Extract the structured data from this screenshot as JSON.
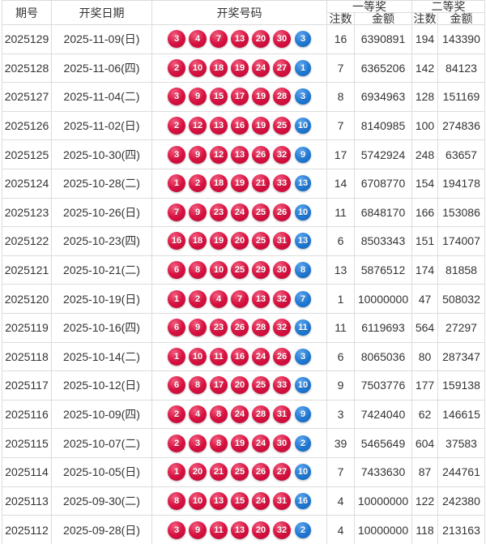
{
  "table": {
    "headers": {
      "period": "期号",
      "date": "开奖日期",
      "numbers": "开奖号码",
      "first_prize": "一等奖",
      "second_prize": "二等奖",
      "count": "注数",
      "amount": "金额"
    },
    "rows": [
      {
        "period": "2025129",
        "date": "2025-11-09(日)",
        "red_balls": [
          "3",
          "4",
          "7",
          "13",
          "20",
          "30"
        ],
        "blue_ball": "3",
        "first_prize_count": "16",
        "first_prize_amount": "6390891",
        "second_prize_count": "194",
        "second_prize_amount": "143390"
      },
      {
        "period": "2025128",
        "date": "2025-11-06(四)",
        "red_balls": [
          "2",
          "10",
          "18",
          "19",
          "24",
          "27"
        ],
        "blue_ball": "1",
        "first_prize_count": "7",
        "first_prize_amount": "6365206",
        "second_prize_count": "142",
        "second_prize_amount": "84123"
      },
      {
        "period": "2025127",
        "date": "2025-11-04(二)",
        "red_balls": [
          "3",
          "9",
          "15",
          "17",
          "19",
          "28"
        ],
        "blue_ball": "3",
        "first_prize_count": "8",
        "first_prize_amount": "6934963",
        "second_prize_count": "128",
        "second_prize_amount": "151169"
      },
      {
        "period": "2025126",
        "date": "2025-11-02(日)",
        "red_balls": [
          "2",
          "12",
          "13",
          "16",
          "19",
          "25"
        ],
        "blue_ball": "10",
        "first_prize_count": "7",
        "first_prize_amount": "8140985",
        "second_prize_count": "100",
        "second_prize_amount": "274836"
      },
      {
        "period": "2025125",
        "date": "2025-10-30(四)",
        "red_balls": [
          "3",
          "9",
          "12",
          "13",
          "26",
          "32"
        ],
        "blue_ball": "9",
        "first_prize_count": "17",
        "first_prize_amount": "5742924",
        "second_prize_count": "248",
        "second_prize_amount": "63657"
      },
      {
        "period": "2025124",
        "date": "2025-10-28(二)",
        "red_balls": [
          "1",
          "2",
          "18",
          "19",
          "21",
          "33"
        ],
        "blue_ball": "13",
        "first_prize_count": "14",
        "first_prize_amount": "6708770",
        "second_prize_count": "154",
        "second_prize_amount": "194178"
      },
      {
        "period": "2025123",
        "date": "2025-10-26(日)",
        "red_balls": [
          "7",
          "9",
          "23",
          "24",
          "25",
          "26"
        ],
        "blue_ball": "10",
        "first_prize_count": "11",
        "first_prize_amount": "6848170",
        "second_prize_count": "166",
        "second_prize_amount": "153086"
      },
      {
        "period": "2025122",
        "date": "2025-10-23(四)",
        "red_balls": [
          "16",
          "18",
          "19",
          "20",
          "25",
          "31"
        ],
        "blue_ball": "13",
        "first_prize_count": "6",
        "first_prize_amount": "8503343",
        "second_prize_count": "151",
        "second_prize_amount": "174007"
      },
      {
        "period": "2025121",
        "date": "2025-10-21(二)",
        "red_balls": [
          "6",
          "8",
          "10",
          "25",
          "29",
          "30"
        ],
        "blue_ball": "8",
        "first_prize_count": "13",
        "first_prize_amount": "5876512",
        "second_prize_count": "174",
        "second_prize_amount": "81858"
      },
      {
        "period": "2025120",
        "date": "2025-10-19(日)",
        "red_balls": [
          "1",
          "2",
          "4",
          "7",
          "13",
          "32"
        ],
        "blue_ball": "7",
        "first_prize_count": "1",
        "first_prize_amount": "10000000",
        "second_prize_count": "47",
        "second_prize_amount": "508032"
      },
      {
        "period": "2025119",
        "date": "2025-10-16(四)",
        "red_balls": [
          "6",
          "9",
          "23",
          "26",
          "28",
          "32"
        ],
        "blue_ball": "11",
        "first_prize_count": "11",
        "first_prize_amount": "6119693",
        "second_prize_count": "564",
        "second_prize_amount": "27297"
      },
      {
        "period": "2025118",
        "date": "2025-10-14(二)",
        "red_balls": [
          "1",
          "10",
          "11",
          "16",
          "24",
          "26"
        ],
        "blue_ball": "3",
        "first_prize_count": "6",
        "first_prize_amount": "8065036",
        "second_prize_count": "80",
        "second_prize_amount": "287347"
      },
      {
        "period": "2025117",
        "date": "2025-10-12(日)",
        "red_balls": [
          "6",
          "8",
          "17",
          "20",
          "25",
          "33"
        ],
        "blue_ball": "10",
        "first_prize_count": "9",
        "first_prize_amount": "7503776",
        "second_prize_count": "177",
        "second_prize_amount": "159138"
      },
      {
        "period": "2025116",
        "date": "2025-10-09(四)",
        "red_balls": [
          "2",
          "4",
          "8",
          "24",
          "28",
          "31"
        ],
        "blue_ball": "9",
        "first_prize_count": "3",
        "first_prize_amount": "7424040",
        "second_prize_count": "62",
        "second_prize_amount": "146615"
      },
      {
        "period": "2025115",
        "date": "2025-10-07(二)",
        "red_balls": [
          "2",
          "3",
          "8",
          "19",
          "24",
          "30"
        ],
        "blue_ball": "2",
        "first_prize_count": "39",
        "first_prize_amount": "5465649",
        "second_prize_count": "604",
        "second_prize_amount": "37583"
      },
      {
        "period": "2025114",
        "date": "2025-10-05(日)",
        "red_balls": [
          "1",
          "20",
          "21",
          "25",
          "26",
          "27"
        ],
        "blue_ball": "10",
        "first_prize_count": "7",
        "first_prize_amount": "7433630",
        "second_prize_count": "87",
        "second_prize_amount": "244761"
      },
      {
        "period": "2025113",
        "date": "2025-09-30(二)",
        "red_balls": [
          "8",
          "10",
          "13",
          "15",
          "24",
          "31"
        ],
        "blue_ball": "16",
        "first_prize_count": "4",
        "first_prize_amount": "10000000",
        "second_prize_count": "122",
        "second_prize_amount": "242380"
      },
      {
        "period": "2025112",
        "date": "2025-09-28(日)",
        "red_balls": [
          "3",
          "9",
          "11",
          "13",
          "20",
          "32"
        ],
        "blue_ball": "2",
        "first_prize_count": "4",
        "first_prize_amount": "10000000",
        "second_prize_count": "118",
        "second_prize_amount": "213163"
      }
    ]
  },
  "colors": {
    "red_ball": "#d8103f",
    "blue_ball": "#1e78d2",
    "border": "#dcdcdc",
    "text": "#333333"
  }
}
